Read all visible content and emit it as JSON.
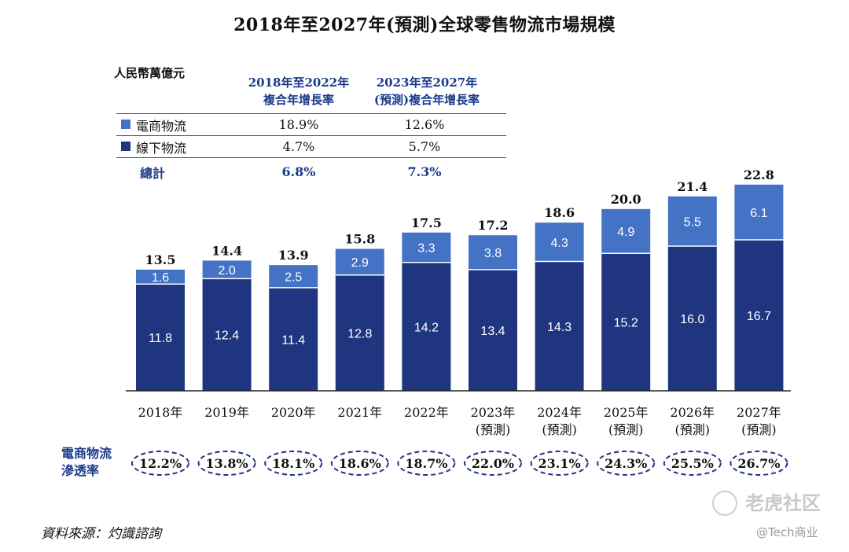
{
  "title": "2018年至2027年(預測)全球零售物流市場規模",
  "table": {
    "unit": "人民幣萬億元",
    "col1_header": [
      "2018年至2022年",
      "複合年增長率"
    ],
    "col2_header": [
      "2023年至2027年",
      "(預測)複合年增長率"
    ],
    "rows": [
      {
        "label": "電商物流",
        "v1": "18.9%",
        "v2": "12.6%"
      },
      {
        "label": "線下物流",
        "v1": "4.7%",
        "v2": "5.7%"
      },
      {
        "label": "總計",
        "v1": "6.8%",
        "v2": "7.3%"
      }
    ]
  },
  "chart_data": {
    "type": "bar",
    "stacked": true,
    "categories": [
      "2018年",
      "2019年",
      "2020年",
      "2021年",
      "2022年",
      "2023年\n(預測)",
      "2024年\n(預測)",
      "2025年\n(預測)",
      "2026年\n(預測)",
      "2027年\n(預測)"
    ],
    "series": [
      {
        "name": "線下物流",
        "values": [
          11.8,
          12.4,
          11.4,
          12.8,
          14.2,
          13.4,
          14.3,
          15.2,
          16.0,
          16.7
        ]
      },
      {
        "name": "電商物流",
        "values": [
          1.6,
          2.0,
          2.5,
          2.9,
          3.3,
          3.8,
          4.3,
          4.9,
          5.5,
          6.1
        ]
      }
    ],
    "totals": [
      13.5,
      14.4,
      13.9,
      15.8,
      17.5,
      17.2,
      18.6,
      20.0,
      21.4,
      22.8
    ],
    "penetration_label": [
      "電商物流",
      "滲透率"
    ],
    "penetration": [
      "12.2%",
      "13.8%",
      "18.1%",
      "18.6%",
      "18.7%",
      "22.0%",
      "23.1%",
      "24.3%",
      "25.5%",
      "26.7%"
    ],
    "colors": {
      "offline": "#1f3580",
      "ecommerce": "#4472c4"
    }
  },
  "source": "資料來源：灼識諮詢",
  "watermark": {
    "brand": "老虎社区",
    "handle": "@Tech商业"
  }
}
